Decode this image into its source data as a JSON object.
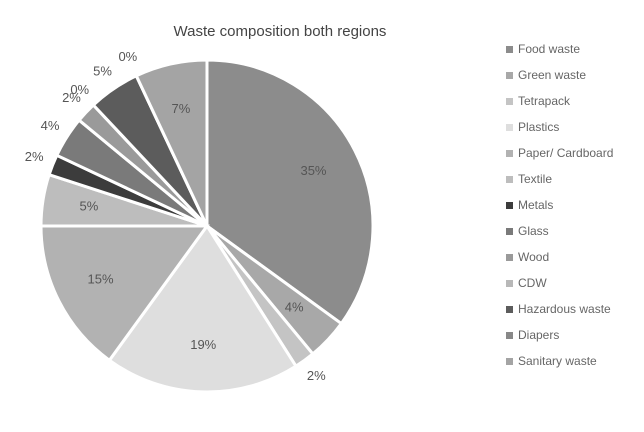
{
  "chart_data": {
    "type": "pie",
    "title": "Waste composition both regions",
    "categories": [
      "Food waste",
      "Green waste",
      "Tetrapack",
      "Plastics",
      "Paper/ Cardboard",
      "Textile",
      "Metals",
      "Glass",
      "Wood",
      "CDW",
      "Hazardous waste",
      "Diapers",
      "Sanitary waste"
    ],
    "values": [
      35,
      4,
      2,
      19,
      15,
      5,
      2,
      4,
      2,
      0,
      5,
      0,
      7
    ],
    "value_labels": [
      "35%",
      "4%",
      "2%",
      "19%",
      "15%",
      "5%",
      "2%",
      "4%",
      "2%",
      "0%",
      "5%",
      "0%",
      "7%"
    ],
    "colors": [
      "#8c8c8c",
      "#a8a8a8",
      "#c4c4c4",
      "#dedede",
      "#b2b2b2",
      "#bdbdbd",
      "#3c3c3c",
      "#7a7a7a",
      "#9a9a9a",
      "#b8b8b8",
      "#5c5c5c",
      "#888888",
      "#a4a4a4"
    ],
    "legend": "right"
  }
}
